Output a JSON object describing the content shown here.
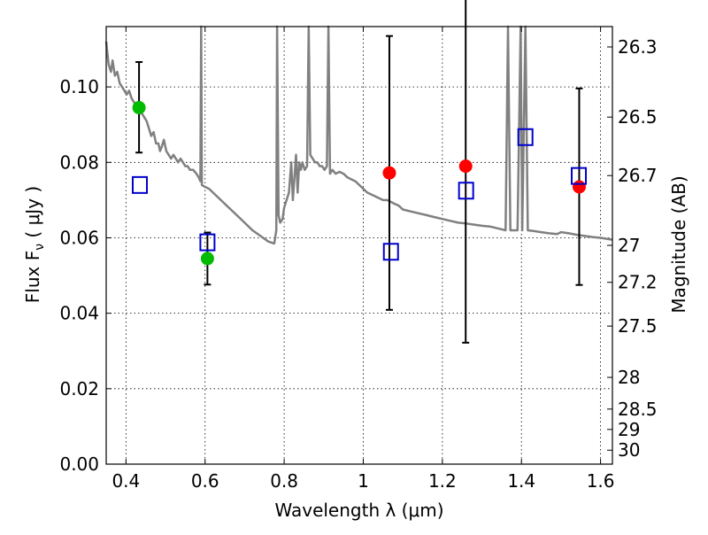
{
  "chart_data": {
    "type": "scatter",
    "xlabel": "Wavelength  λ (μm)",
    "ylabel_left": "Flux  F",
    "ylabel_left_sub": "ν",
    "ylabel_left_units": " ( μJy )",
    "ylabel_right": "Magnitude (AB)",
    "xlim": [
      0.35,
      1.63
    ],
    "ylim": [
      0.0,
      0.116
    ],
    "grid": true,
    "x_ticks": [
      0.4,
      0.6,
      0.8,
      1.0,
      1.2,
      1.4,
      1.6
    ],
    "x_tick_labels": [
      "0.4",
      "0.6",
      "0.8",
      "1",
      "1.2",
      "1.4",
      "1.6"
    ],
    "y_ticks": [
      0.0,
      0.02,
      0.04,
      0.06,
      0.08,
      0.1
    ],
    "y_tick_labels": [
      "0.00",
      "0.02",
      "0.04",
      "0.06",
      "0.08",
      "0.10"
    ],
    "mag_ticks": [
      {
        "label": "26.3",
        "flux": 0.1106
      },
      {
        "label": "26.5",
        "flux": 0.092
      },
      {
        "label": "26.7",
        "flux": 0.0765
      },
      {
        "label": "27",
        "flux": 0.058
      },
      {
        "label": "27.2",
        "flux": 0.0482
      },
      {
        "label": "27.5",
        "flux": 0.0366
      },
      {
        "label": "28",
        "flux": 0.023
      },
      {
        "label": "28.5",
        "flux": 0.0146
      },
      {
        "label": "29",
        "flux": 0.0092
      },
      {
        "label": "30",
        "flux": 0.0037
      }
    ],
    "series": [
      {
        "kind": "observed-green",
        "color": "#00bb00",
        "points": [
          {
            "x": 0.433,
            "y": 0.0945,
            "err_lo": 0.0826,
            "err_hi": 0.1066
          },
          {
            "x": 0.606,
            "y": 0.0545,
            "err_lo": 0.0476,
            "err_hi": 0.0614
          }
        ]
      },
      {
        "kind": "observed-red",
        "color": "#ff0000",
        "points": [
          {
            "x": 1.066,
            "y": 0.0772,
            "err_lo": 0.0409,
            "err_hi": 0.1135
          },
          {
            "x": 1.259,
            "y": 0.079,
            "err_lo": 0.0322,
            "err_hi": 0.1258
          },
          {
            "x": 1.546,
            "y": 0.0735,
            "err_lo": 0.0475,
            "err_hi": 0.0996
          }
        ]
      },
      {
        "kind": "model-boxes",
        "color": "#0000cc",
        "points": [
          {
            "x": 0.435,
            "y": 0.074
          },
          {
            "x": 0.606,
            "y": 0.0588
          },
          {
            "x": 1.07,
            "y": 0.0563
          },
          {
            "x": 1.26,
            "y": 0.0725
          },
          {
            "x": 1.41,
            "y": 0.0867
          },
          {
            "x": 1.545,
            "y": 0.0764
          }
        ]
      },
      {
        "kind": "template-spectrum",
        "color": "#808080",
        "points": [
          [
            0.35,
            0.112
          ],
          [
            0.356,
            0.106
          ],
          [
            0.362,
            0.104
          ],
          [
            0.366,
            0.107
          ],
          [
            0.372,
            0.103
          ],
          [
            0.378,
            0.104
          ],
          [
            0.384,
            0.101
          ],
          [
            0.39,
            0.1
          ],
          [
            0.396,
            0.099
          ],
          [
            0.402,
            0.098
          ],
          [
            0.408,
            0.099
          ],
          [
            0.414,
            0.097
          ],
          [
            0.42,
            0.096
          ],
          [
            0.426,
            0.095
          ],
          [
            0.432,
            0.093
          ],
          [
            0.44,
            0.093
          ],
          [
            0.446,
            0.092
          ],
          [
            0.452,
            0.091
          ],
          [
            0.458,
            0.089
          ],
          [
            0.464,
            0.087
          ],
          [
            0.47,
            0.088
          ],
          [
            0.476,
            0.085
          ],
          [
            0.482,
            0.085
          ],
          [
            0.486,
            0.083
          ],
          [
            0.49,
            0.084
          ],
          [
            0.496,
            0.086
          ],
          [
            0.502,
            0.083
          ],
          [
            0.508,
            0.082
          ],
          [
            0.514,
            0.081
          ],
          [
            0.52,
            0.082
          ],
          [
            0.526,
            0.081
          ],
          [
            0.532,
            0.08
          ],
          [
            0.538,
            0.081
          ],
          [
            0.544,
            0.08
          ],
          [
            0.55,
            0.079
          ],
          [
            0.556,
            0.079
          ],
          [
            0.562,
            0.078
          ],
          [
            0.57,
            0.078
          ],
          [
            0.578,
            0.077
          ],
          [
            0.584,
            0.076
          ],
          [
            0.588,
            0.075
          ],
          [
            0.59,
            0.116
          ],
          [
            0.592,
            0.074
          ],
          [
            0.6,
            0.0735
          ],
          [
            0.61,
            0.073
          ],
          [
            0.62,
            0.072
          ],
          [
            0.63,
            0.071
          ],
          [
            0.64,
            0.07
          ],
          [
            0.66,
            0.068
          ],
          [
            0.68,
            0.066
          ],
          [
            0.7,
            0.064
          ],
          [
            0.72,
            0.062
          ],
          [
            0.74,
            0.0605
          ],
          [
            0.76,
            0.059
          ],
          [
            0.775,
            0.0585
          ],
          [
            0.78,
            0.062
          ],
          [
            0.782,
            0.116
          ],
          [
            0.786,
            0.066
          ],
          [
            0.79,
            0.064
          ],
          [
            0.796,
            0.065
          ],
          [
            0.8,
            0.068
          ],
          [
            0.806,
            0.07
          ],
          [
            0.812,
            0.072
          ],
          [
            0.818,
            0.08
          ],
          [
            0.822,
            0.07
          ],
          [
            0.826,
            0.076
          ],
          [
            0.83,
            0.082
          ],
          [
            0.834,
            0.072
          ],
          [
            0.838,
            0.08
          ],
          [
            0.842,
            0.078
          ],
          [
            0.846,
            0.08
          ],
          [
            0.852,
            0.078
          ],
          [
            0.858,
            0.079
          ],
          [
            0.862,
            0.116
          ],
          [
            0.866,
            0.082
          ],
          [
            0.872,
            0.081
          ],
          [
            0.878,
            0.08
          ],
          [
            0.884,
            0.08
          ],
          [
            0.89,
            0.079
          ],
          [
            0.896,
            0.079
          ],
          [
            0.902,
            0.078
          ],
          [
            0.908,
            0.079
          ],
          [
            0.912,
            0.116
          ],
          [
            0.916,
            0.077
          ],
          [
            0.922,
            0.078
          ],
          [
            0.93,
            0.077
          ],
          [
            0.94,
            0.0775
          ],
          [
            0.95,
            0.077
          ],
          [
            0.96,
            0.076
          ],
          [
            0.97,
            0.0755
          ],
          [
            0.98,
            0.075
          ],
          [
            0.99,
            0.074
          ],
          [
            1.0,
            0.073
          ],
          [
            1.01,
            0.072
          ],
          [
            1.02,
            0.0715
          ],
          [
            1.03,
            0.071
          ],
          [
            1.04,
            0.0705
          ],
          [
            1.05,
            0.07
          ],
          [
            1.06,
            0.07
          ],
          [
            1.07,
            0.0695
          ],
          [
            1.08,
            0.069
          ],
          [
            1.09,
            0.0685
          ],
          [
            1.1,
            0.0675
          ],
          [
            1.12,
            0.067
          ],
          [
            1.14,
            0.0665
          ],
          [
            1.16,
            0.066
          ],
          [
            1.18,
            0.0655
          ],
          [
            1.2,
            0.065
          ],
          [
            1.22,
            0.0645
          ],
          [
            1.24,
            0.064
          ],
          [
            1.26,
            0.0638
          ],
          [
            1.28,
            0.0635
          ],
          [
            1.3,
            0.0632
          ],
          [
            1.32,
            0.063
          ],
          [
            1.34,
            0.0625
          ],
          [
            1.36,
            0.062
          ],
          [
            1.366,
            0.116
          ],
          [
            1.372,
            0.062
          ],
          [
            1.38,
            0.062
          ],
          [
            1.39,
            0.062
          ],
          [
            1.398,
            0.116
          ],
          [
            1.402,
            0.062
          ],
          [
            1.41,
            0.116
          ],
          [
            1.416,
            0.062
          ],
          [
            1.43,
            0.0618
          ],
          [
            1.45,
            0.0615
          ],
          [
            1.47,
            0.0612
          ],
          [
            1.49,
            0.061
          ],
          [
            1.5,
            0.0615
          ],
          [
            1.52,
            0.0612
          ],
          [
            1.54,
            0.0608
          ],
          [
            1.56,
            0.0605
          ],
          [
            1.58,
            0.0602
          ],
          [
            1.6,
            0.06
          ],
          [
            1.63,
            0.0595
          ]
        ]
      }
    ]
  }
}
